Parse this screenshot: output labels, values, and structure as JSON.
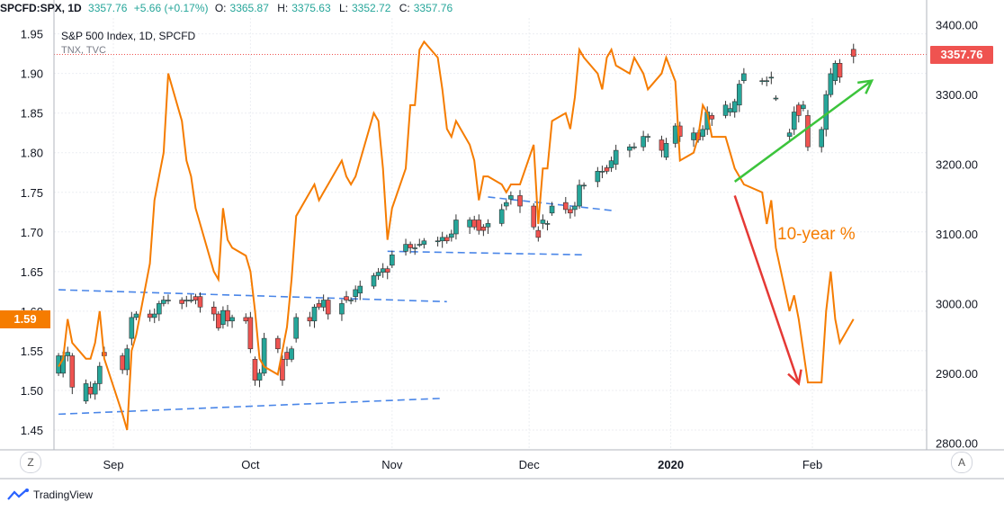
{
  "header": {
    "symbol": "SPCFD:SPX, 1D",
    "last": "3357.76",
    "change": "+5.66 (+0.17%)",
    "o_label": "O:",
    "o_value": "3365.87",
    "h_label": "H:",
    "h_value": "3375.63",
    "l_label": "L:",
    "l_value": "3352.72",
    "c_label": "C:",
    "c_value": "3357.76"
  },
  "legend": {
    "main": "S&P 500 Index, 1D, SPCFD",
    "overlay": "TNX, TVC"
  },
  "price_tag": "3357.76",
  "tnx_tag": "1.59",
  "annotation": "10-year %",
  "buttons": {
    "left": "Z",
    "right": "A"
  },
  "footer": {
    "brand": "TradingView"
  },
  "colors": {
    "up": "#26a69a",
    "down": "#ef5350",
    "tnx": "#f57c00",
    "trend": "#4a86e8",
    "green_arrow": "#3cc43c",
    "red_arrow": "#e53935"
  },
  "chart_data": {
    "type": "line",
    "x_ticks": [
      "Sep",
      "Oct",
      "Nov",
      "Dec",
      "2020",
      "Feb"
    ],
    "x_tick_dates": [
      "2019-09-01",
      "2019-10-01",
      "2019-11-01",
      "2019-12-01",
      "2020-01-01",
      "2020-02-01"
    ],
    "left_axis": {
      "ticks": [
        "1.95",
        "1.90",
        "1.85",
        "1.80",
        "1.75",
        "1.70",
        "1.65",
        "1.60",
        "1.55",
        "1.50",
        "1.45"
      ],
      "range": [
        1.425,
        1.97
      ]
    },
    "right_axis": {
      "ticks": [
        "3400.00",
        "3300.00",
        "3200.00",
        "3100.00",
        "3000.00",
        "2900.00",
        "2800.00"
      ],
      "range": [
        2790,
        3410
      ]
    },
    "grid": true,
    "series": [
      {
        "type": "candlestick",
        "x": [
          "2019-08-20",
          "2019-08-21",
          "2019-08-22",
          "2019-08-23",
          "2019-08-26",
          "2019-08-27",
          "2019-08-28",
          "2019-08-29",
          "2019-08-30",
          "2019-09-03",
          "2019-09-04",
          "2019-09-05",
          "2019-09-06",
          "2019-09-09",
          "2019-09-10",
          "2019-09-11",
          "2019-09-12",
          "2019-09-13",
          "2019-09-16",
          "2019-09-17",
          "2019-09-18",
          "2019-09-19",
          "2019-09-20",
          "2019-09-23",
          "2019-09-24",
          "2019-09-25",
          "2019-09-26",
          "2019-09-27",
          "2019-09-30",
          "2019-10-01",
          "2019-10-02",
          "2019-10-03",
          "2019-10-04",
          "2019-10-07",
          "2019-10-08",
          "2019-10-09",
          "2019-10-10",
          "2019-10-11",
          "2019-10-14",
          "2019-10-15",
          "2019-10-16",
          "2019-10-17",
          "2019-10-18",
          "2019-10-21",
          "2019-10-22",
          "2019-10-23",
          "2019-10-24",
          "2019-10-25",
          "2019-10-28",
          "2019-10-29",
          "2019-10-30",
          "2019-10-31",
          "2019-11-01",
          "2019-11-04",
          "2019-11-05",
          "2019-11-06",
          "2019-11-07",
          "2019-11-08",
          "2019-11-11",
          "2019-11-12",
          "2019-11-13",
          "2019-11-14",
          "2019-11-15",
          "2019-11-18",
          "2019-11-19",
          "2019-11-20",
          "2019-11-21",
          "2019-11-22",
          "2019-11-25",
          "2019-11-26",
          "2019-11-27",
          "2019-11-29",
          "2019-12-02",
          "2019-12-03",
          "2019-12-04",
          "2019-12-05",
          "2019-12-06",
          "2019-12-09",
          "2019-12-10",
          "2019-12-11",
          "2019-12-12",
          "2019-12-13",
          "2019-12-16",
          "2019-12-17",
          "2019-12-18",
          "2019-12-19",
          "2019-12-20",
          "2019-12-23",
          "2019-12-24",
          "2019-12-26",
          "2019-12-27",
          "2019-12-30",
          "2019-12-31",
          "2020-01-02",
          "2020-01-03",
          "2020-01-06",
          "2020-01-07",
          "2020-01-08",
          "2020-01-09",
          "2020-01-10",
          "2020-01-13",
          "2020-01-14",
          "2020-01-15",
          "2020-01-16",
          "2020-01-17",
          "2020-01-21",
          "2020-01-22",
          "2020-01-23",
          "2020-01-24",
          "2020-01-27",
          "2020-01-28",
          "2020-01-29",
          "2020-01-30",
          "2020-01-31",
          "2020-02-03",
          "2020-02-04",
          "2020-02-05",
          "2020-02-06",
          "2020-02-07",
          "2020-02-10"
        ],
        "open": [
          2900,
          2900,
          2925,
          2925,
          2860,
          2880,
          2870,
          2885,
          2930,
          2925,
          2905,
          2950,
          2980,
          2985,
          2980,
          2985,
          3000,
          3005,
          3005,
          3005,
          3005,
          3010,
          3010,
          2995,
          2985,
          2970,
          2990,
          2975,
          2980,
          2980,
          2920,
          2890,
          2900,
          2950,
          2920,
          2930,
          2920,
          2950,
          2980,
          2975,
          3000,
          2995,
          3005,
          2985,
          3010,
          3005,
          3010,
          3015,
          3025,
          3040,
          3045,
          3050,
          3055,
          3075,
          3085,
          3080,
          3085,
          3085,
          3090,
          3090,
          3095,
          3095,
          3100,
          3110,
          3120,
          3120,
          3110,
          3110,
          3115,
          3140,
          3150,
          3155,
          3140,
          3105,
          3115,
          3115,
          3130,
          3145,
          3135,
          3135,
          3140,
          3170,
          3175,
          3190,
          3195,
          3195,
          3200,
          3220,
          3225,
          3225,
          3240,
          3235,
          3210,
          3230,
          3255,
          3235,
          3245,
          3240,
          3250,
          3270,
          3270,
          3275,
          3275,
          3285,
          3320,
          3320,
          3320,
          3325,
          3295,
          3240,
          3250,
          3285,
          3280,
          3270,
          3225,
          3250,
          3300,
          3320,
          3345,
          3365
        ],
        "close": [
          2925,
          2925,
          2930,
          2880,
          2885,
          2870,
          2885,
          2910,
          2925,
          2905,
          2935,
          2980,
          2985,
          2980,
          2985,
          3000,
          3005,
          3005,
          3000,
          3005,
          3005,
          3005,
          2995,
          2985,
          2965,
          2990,
          2975,
          2980,
          2975,
          2935,
          2890,
          2900,
          2950,
          2935,
          2890,
          2920,
          2935,
          2980,
          2975,
          2995,
          2995,
          3005,
          2985,
          3000,
          3005,
          3005,
          3020,
          3025,
          3040,
          3045,
          3050,
          3045,
          3070,
          3085,
          3080,
          3080,
          3085,
          3090,
          3090,
          3095,
          3090,
          3100,
          3120,
          3120,
          3110,
          3105,
          3105,
          3115,
          3135,
          3145,
          3155,
          3140,
          3110,
          3095,
          3120,
          3115,
          3140,
          3135,
          3130,
          3140,
          3170,
          3170,
          3190,
          3190,
          3190,
          3205,
          3220,
          3225,
          3225,
          3240,
          3240,
          3220,
          3230,
          3255,
          3240,
          3245,
          3235,
          3250,
          3275,
          3265,
          3285,
          3280,
          3290,
          3315,
          3330,
          3320,
          3320,
          3325,
          3295,
          3245,
          3275,
          3270,
          3285,
          3225,
          3250,
          3300,
          3330,
          3345,
          3325,
          3355
        ]
      },
      {
        "name": "TNX",
        "type": "line",
        "x": [
          "2019-08-20",
          "2019-08-21",
          "2019-08-22",
          "2019-08-23",
          "2019-08-26",
          "2019-08-27",
          "2019-08-28",
          "2019-08-29",
          "2019-08-30",
          "2019-09-03",
          "2019-09-04",
          "2019-09-05",
          "2019-09-06",
          "2019-09-09",
          "2019-09-10",
          "2019-09-11",
          "2019-09-12",
          "2019-09-13",
          "2019-09-16",
          "2019-09-17",
          "2019-09-18",
          "2019-09-19",
          "2019-09-20",
          "2019-09-23",
          "2019-09-24",
          "2019-09-25",
          "2019-09-26",
          "2019-09-27",
          "2019-09-30",
          "2019-10-01",
          "2019-10-02",
          "2019-10-03",
          "2019-10-04",
          "2019-10-07",
          "2019-10-08",
          "2019-10-09",
          "2019-10-10",
          "2019-10-11",
          "2019-10-14",
          "2019-10-15",
          "2019-10-16",
          "2019-10-17",
          "2019-10-18",
          "2019-10-21",
          "2019-10-22",
          "2019-10-23",
          "2019-10-24",
          "2019-10-25",
          "2019-10-28",
          "2019-10-29",
          "2019-10-30",
          "2019-10-31",
          "2019-11-01",
          "2019-11-04",
          "2019-11-05",
          "2019-11-06",
          "2019-11-07",
          "2019-11-08",
          "2019-11-11",
          "2019-11-12",
          "2019-11-13",
          "2019-11-14",
          "2019-11-15",
          "2019-11-18",
          "2019-11-19",
          "2019-11-20",
          "2019-11-21",
          "2019-11-22",
          "2019-11-25",
          "2019-11-26",
          "2019-11-27",
          "2019-11-29",
          "2019-12-02",
          "2019-12-03",
          "2019-12-04",
          "2019-12-05",
          "2019-12-06",
          "2019-12-09",
          "2019-12-10",
          "2019-12-11",
          "2019-12-12",
          "2019-12-13",
          "2019-12-16",
          "2019-12-17",
          "2019-12-18",
          "2019-12-19",
          "2019-12-20",
          "2019-12-23",
          "2019-12-24",
          "2019-12-26",
          "2019-12-27",
          "2019-12-30",
          "2019-12-31",
          "2020-01-02",
          "2020-01-03",
          "2020-01-06",
          "2020-01-07",
          "2020-01-08",
          "2020-01-09",
          "2020-01-10",
          "2020-01-13",
          "2020-01-14",
          "2020-01-15",
          "2020-01-16",
          "2020-01-17",
          "2020-01-21",
          "2020-01-22",
          "2020-01-23",
          "2020-01-24",
          "2020-01-27",
          "2020-01-28",
          "2020-01-29",
          "2020-01-30",
          "2020-01-31",
          "2020-02-03",
          "2020-02-04",
          "2020-02-05",
          "2020-02-06",
          "2020-02-07",
          "2020-02-10"
        ],
        "values": [
          1.53,
          1.54,
          1.59,
          1.56,
          1.54,
          1.54,
          1.56,
          1.6,
          1.54,
          1.47,
          1.45,
          1.55,
          1.57,
          1.66,
          1.74,
          1.77,
          1.8,
          1.9,
          1.84,
          1.79,
          1.77,
          1.73,
          1.71,
          1.65,
          1.64,
          1.73,
          1.69,
          1.68,
          1.67,
          1.65,
          1.6,
          1.54,
          1.53,
          1.52,
          1.55,
          1.58,
          1.64,
          1.72,
          1.75,
          1.76,
          1.74,
          1.75,
          1.76,
          1.79,
          1.77,
          1.76,
          1.77,
          1.79,
          1.85,
          1.84,
          1.78,
          1.69,
          1.73,
          1.78,
          1.86,
          1.86,
          1.93,
          1.94,
          1.92,
          1.88,
          1.83,
          1.82,
          1.84,
          1.81,
          1.79,
          1.74,
          1.77,
          1.77,
          1.76,
          1.75,
          1.76,
          1.76,
          1.81,
          1.71,
          1.78,
          1.78,
          1.84,
          1.85,
          1.83,
          1.87,
          1.93,
          1.92,
          1.9,
          1.88,
          1.92,
          1.93,
          1.91,
          1.9,
          1.92,
          1.9,
          1.88,
          1.9,
          1.92,
          1.89,
          1.79,
          1.8,
          1.82,
          1.86,
          1.85,
          1.82,
          1.82,
          1.8,
          1.78,
          1.77,
          1.76,
          1.75,
          1.71,
          1.74,
          1.68,
          1.6,
          1.62,
          1.59,
          1.55,
          1.51,
          1.51,
          1.6,
          1.65,
          1.59,
          1.56,
          1.59
        ]
      }
    ],
    "trendlines": [
      {
        "axis": "left",
        "from": [
          "2019-08-20",
          1.627
        ],
        "to": [
          "2019-11-13",
          1.612
        ]
      },
      {
        "axis": "left",
        "from": [
          "2019-08-20",
          1.47
        ],
        "to": [
          "2019-11-12",
          1.49
        ]
      },
      {
        "axis": "right",
        "from": [
          "2019-10-31",
          3075
        ],
        "to": [
          "2019-12-13",
          3070
        ]
      },
      {
        "axis": "right",
        "from": [
          "2019-11-22",
          3153
        ],
        "to": [
          "2019-12-20",
          3133
        ]
      }
    ],
    "arrows": [
      {
        "color": "green",
        "from": [
          "2020-01-15",
          3175
        ],
        "to": [
          "2020-02-14",
          3320
        ]
      },
      {
        "color": "red",
        "from": [
          "2020-01-15",
          3155
        ],
        "to": [
          "2020-01-29",
          2885
        ]
      }
    ],
    "price_line": 3357.76
  }
}
